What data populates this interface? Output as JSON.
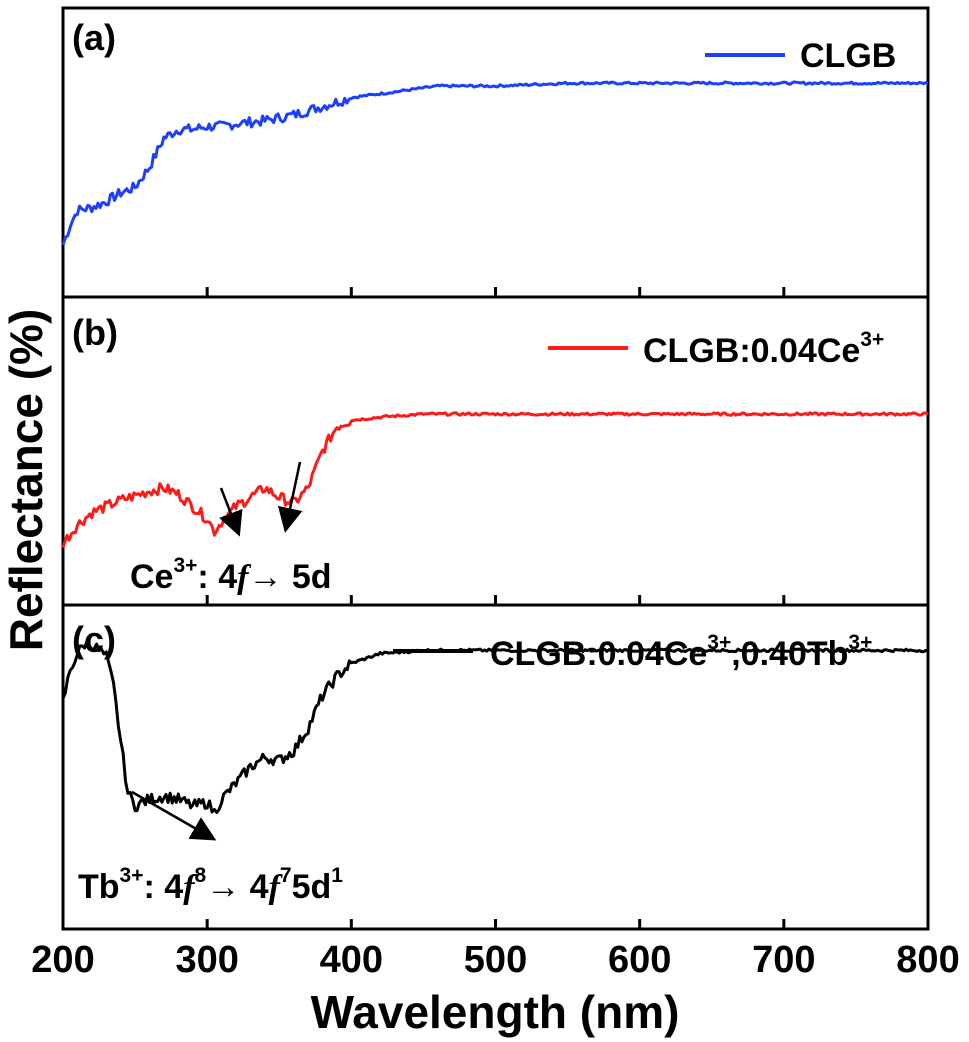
{
  "chart_data": {
    "type": "line",
    "xlabel": "Wavelength (nm)",
    "ylabel": "Reflectance (%)",
    "xlim": [
      200,
      800
    ],
    "x_ticks": [
      "200",
      "300",
      "400",
      "500",
      "600",
      "700",
      "800"
    ],
    "panels": [
      {
        "label": "(a)",
        "series": [
          {
            "name": "CLGB",
            "color": "#1f3fff",
            "x": [
              200,
              205,
              210,
              220,
              230,
              240,
              250,
              260,
              270,
              280,
              290,
              300,
              310,
              320,
              340,
              360,
              380,
              400,
              430,
              460,
              500,
              550,
              600,
              650,
              700,
              750,
              800
            ],
            "y": [
              0.18,
              0.25,
              0.3,
              0.31,
              0.33,
              0.36,
              0.38,
              0.45,
              0.55,
              0.58,
              0.58,
              0.59,
              0.59,
              0.6,
              0.61,
              0.63,
              0.66,
              0.69,
              0.71,
              0.73,
              0.73,
              0.74,
              0.74,
              0.74,
              0.74,
              0.74,
              0.74
            ]
          }
        ]
      },
      {
        "label": "(b)",
        "series": [
          {
            "name": "CLGB:0.04Ce3+",
            "legend_base": "CLGB:0.04Ce",
            "legend_sup": "3+",
            "color": "#ff1a1a",
            "x": [
              200,
              210,
              220,
              240,
              260,
              270,
              280,
              290,
              300,
              305,
              310,
              320,
              330,
              340,
              350,
              360,
              370,
              380,
              390,
              400,
              420,
              450,
              500,
              550,
              600,
              650,
              700,
              750,
              800
            ],
            "y": [
              0.2,
              0.26,
              0.3,
              0.34,
              0.37,
              0.38,
              0.36,
              0.32,
              0.28,
              0.24,
              0.27,
              0.32,
              0.35,
              0.38,
              0.35,
              0.33,
              0.38,
              0.5,
              0.58,
              0.6,
              0.61,
              0.62,
              0.62,
              0.62,
              0.62,
              0.62,
              0.62,
              0.62,
              0.62
            ]
          }
        ],
        "annotation": {
          "base": "Ce",
          "sup": "3+",
          "text1": ": 4",
          "f": "f",
          "arrow": "→",
          "text2": " 5d"
        }
      },
      {
        "label": "(c)",
        "series": [
          {
            "name": "CLGB:0.04Ce3+,0.40Tb3+",
            "legend_base1": "CLGB:0.04Ce",
            "legend_sup1": "3+",
            "legend_base2": ",0.40Tb",
            "legend_sup2": "3+",
            "color": "#000000",
            "x": [
              200,
              205,
              210,
              215,
              220,
              225,
              230,
              235,
              240,
              245,
              250,
              260,
              270,
              280,
              290,
              300,
              305,
              310,
              320,
              330,
              340,
              350,
              360,
              370,
              380,
              390,
              400,
              420,
              450,
              500,
              550,
              600,
              650,
              700,
              750,
              800
            ],
            "y": [
              0.7,
              0.8,
              0.85,
              0.88,
              0.88,
              0.86,
              0.84,
              0.75,
              0.58,
              0.42,
              0.38,
              0.4,
              0.41,
              0.4,
              0.38,
              0.39,
              0.36,
              0.4,
              0.45,
              0.5,
              0.53,
              0.52,
              0.55,
              0.62,
              0.72,
              0.78,
              0.82,
              0.85,
              0.86,
              0.86,
              0.86,
              0.86,
              0.86,
              0.86,
              0.86,
              0.86
            ]
          }
        ],
        "annotation": {
          "base": "Tb",
          "sup": "3+",
          "text1": ": 4",
          "f1": "f",
          "sup2": "8",
          "arrow": "→",
          "text2": " 4",
          "f2": "f",
          "sup3": "7",
          "text3": "5d",
          "sup4": "1"
        }
      }
    ]
  }
}
